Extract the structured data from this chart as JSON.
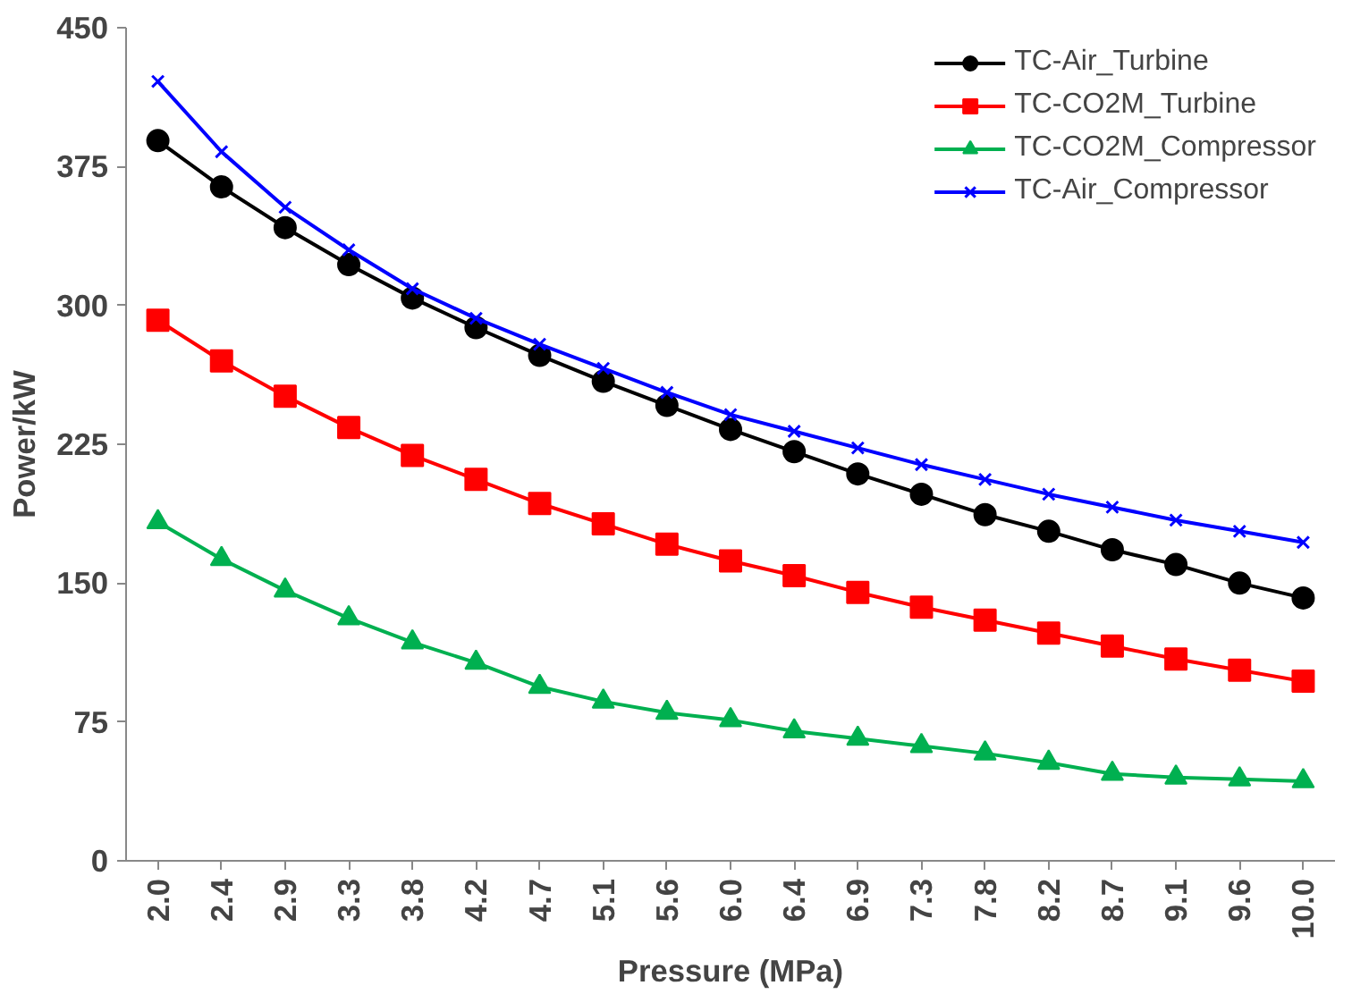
{
  "chart_data": {
    "type": "line",
    "xlabel": "Pressure (MPa)",
    "ylabel": "Power/kW",
    "categories": [
      "2.0",
      "2.4",
      "2.9",
      "3.3",
      "3.8",
      "4.2",
      "4.7",
      "5.1",
      "5.6",
      "6.0",
      "6.4",
      "6.9",
      "7.3",
      "7.8",
      "8.2",
      "8.7",
      "9.1",
      "9.6",
      "10.0"
    ],
    "ylim": [
      0,
      450
    ],
    "yticks": [
      0,
      75,
      150,
      225,
      300,
      375,
      450
    ],
    "grid": false,
    "legend": "top right",
    "line_style": "solid",
    "series": [
      {
        "name": "TC-Air_Turbine",
        "color": "#000000",
        "marker": "circle",
        "values": [
          389,
          364,
          342,
          322,
          304,
          288,
          273,
          259,
          246,
          233,
          221,
          209,
          198,
          187,
          178,
          168,
          160,
          150,
          142
        ]
      },
      {
        "name": "TC-CO2M_Turbine",
        "color": "#ff0000",
        "marker": "square",
        "values": [
          292,
          270,
          251,
          234,
          219,
          206,
          193,
          182,
          171,
          162,
          154,
          145,
          137,
          130,
          123,
          116,
          109,
          103,
          97
        ]
      },
      {
        "name": "TC-CO2M_Compressor",
        "color": "#00b050",
        "marker": "triangle",
        "values": [
          183,
          163,
          146,
          131,
          118,
          107,
          94,
          86,
          80,
          76,
          70,
          66,
          62,
          58,
          53,
          47,
          45,
          44,
          43
        ]
      },
      {
        "name": "TC-Air_Compressor",
        "color": "#0000ff",
        "marker": "cross",
        "values": [
          421,
          383,
          353,
          330,
          309,
          293,
          279,
          266,
          253,
          241,
          232,
          223,
          214,
          206,
          198,
          191,
          184,
          178,
          172
        ]
      }
    ]
  }
}
